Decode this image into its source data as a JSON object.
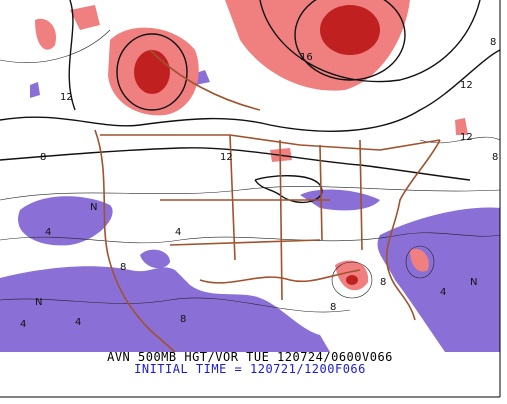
{
  "caption": {
    "line1": "AVN 500MB HGT/VOR TUE 120724/0600V066",
    "line2": "INITIAL TIME = 120721/1200F066"
  },
  "map_labels": [
    "12",
    "8",
    "12",
    "8",
    "N",
    "4",
    "8",
    "12",
    "N",
    "4",
    "8",
    "8",
    "4",
    "N",
    "4",
    "8",
    "12",
    "16",
    "8",
    "4"
  ]
}
